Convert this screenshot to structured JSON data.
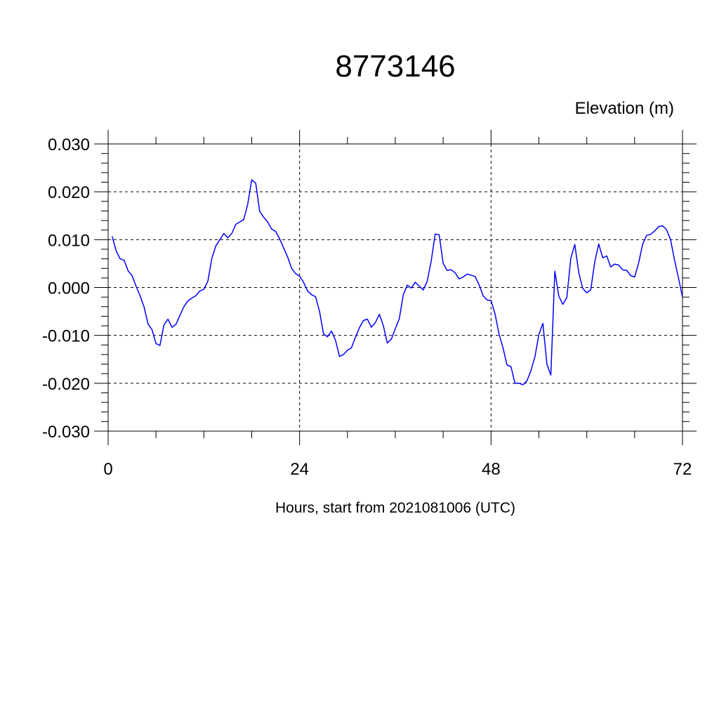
{
  "chart_data": {
    "type": "line",
    "title": "8773146",
    "ylabel": "Elevation (m)",
    "xlabel": "Hours, start from 2021081006 (UTC)",
    "xlim": [
      0,
      72
    ],
    "ylim": [
      -0.03,
      0.03
    ],
    "xticks": [
      0,
      24,
      48,
      72
    ],
    "xtick_labels": [
      "0",
      "24",
      "48",
      "72"
    ],
    "yticks": [
      -0.03,
      -0.02,
      -0.01,
      0.0,
      0.01,
      0.02,
      0.03
    ],
    "ytick_labels": [
      "-0.030",
      "-0.020",
      "-0.010",
      "0.000",
      "0.010",
      "0.020",
      "0.030"
    ],
    "grid": true,
    "line_color": "#0000ff",
    "series": [
      {
        "x": [
          0.5,
          1,
          1.5,
          2,
          2.5,
          3,
          3.5,
          4,
          4.5,
          5,
          5.5,
          6,
          6.5,
          7,
          7.5,
          8,
          8.5,
          9,
          9.5,
          10,
          10.5,
          11,
          11.5,
          12,
          12.5,
          13,
          13.5,
          14,
          14.5,
          15,
          15.5,
          16,
          16.5,
          17,
          17.5,
          18,
          18.5,
          19,
          19.5,
          20,
          20.5,
          21,
          21.5,
          22,
          22.5,
          23,
          23.5,
          24,
          24.5,
          25,
          25.5,
          26,
          26.5,
          27,
          27.5,
          28,
          28.5,
          29,
          29.5,
          30,
          30.5,
          31,
          31.5,
          32,
          32.5,
          33,
          33.5,
          34,
          34.5,
          35,
          35.5,
          36,
          36.5,
          37,
          37.5,
          38,
          38.5,
          39,
          39.5,
          40,
          40.5,
          41,
          41.5,
          42,
          42.5,
          43,
          43.5,
          44,
          44.5,
          45,
          45.5,
          46,
          46.5,
          47,
          47.5,
          48,
          48.5,
          49,
          49.5,
          50,
          50.5,
          51,
          51.5,
          52,
          52.5,
          53,
          53.5,
          54,
          54.5,
          55,
          55.5,
          56,
          56.5,
          57,
          57.5,
          58,
          58.5,
          59,
          59.5,
          60,
          60.5,
          61,
          61.5,
          62,
          62.5,
          63,
          63.5,
          64,
          64.5,
          65,
          65.5,
          66,
          66.5,
          67,
          67.5,
          68,
          68.5,
          69,
          69.5,
          70,
          70.5,
          71,
          71.5,
          72
        ],
        "y": [
          0.0107,
          0.0077,
          0.006,
          0.0057,
          0.0035,
          0.0025,
          0.0003,
          -0.0017,
          -0.004,
          -0.0076,
          -0.0088,
          -0.0117,
          -0.0121,
          -0.0078,
          -0.0066,
          -0.0083,
          -0.0077,
          -0.0058,
          -0.004,
          -0.0028,
          -0.0022,
          -0.0017,
          -0.0007,
          -0.0004,
          0.0013,
          0.0061,
          0.0087,
          0.01,
          0.0113,
          0.0104,
          0.0113,
          0.0132,
          0.0137,
          0.0142,
          0.0174,
          0.0225,
          0.0218,
          0.0159,
          0.0147,
          0.0137,
          0.0122,
          0.0117,
          0.0102,
          0.0083,
          0.0064,
          0.004,
          0.0029,
          0.0024,
          0.0011,
          -0.0007,
          -0.0015,
          -0.0019,
          -0.005,
          -0.0097,
          -0.0103,
          -0.0091,
          -0.011,
          -0.0144,
          -0.014,
          -0.0131,
          -0.0126,
          -0.0104,
          -0.0084,
          -0.0069,
          -0.0066,
          -0.0083,
          -0.0073,
          -0.0056,
          -0.008,
          -0.0116,
          -0.0108,
          -0.0086,
          -0.0065,
          -0.0015,
          0.0005,
          -0.0001,
          0.0011,
          0.0003,
          -0.0005,
          0.0013,
          0.0055,
          0.0112,
          0.011,
          0.005,
          0.0036,
          0.0037,
          0.0031,
          0.0018,
          0.0022,
          0.0028,
          0.0026,
          0.0023,
          0.0006,
          -0.0017,
          -0.0026,
          -0.0027,
          -0.0055,
          -0.0097,
          -0.0126,
          -0.0162,
          -0.0165,
          -0.02,
          -0.02,
          -0.0203,
          -0.0195,
          -0.0174,
          -0.0145,
          -0.0098,
          -0.0075,
          -0.016,
          -0.0183,
          0.0034,
          -0.0018,
          -0.0035,
          -0.0021,
          0.0061,
          0.009,
          0.0031,
          -0.0002,
          -0.0011,
          -0.0005,
          0.0053,
          0.0091,
          0.0062,
          0.0066,
          0.0043,
          0.0049,
          0.0047,
          0.0037,
          0.0036,
          0.0025,
          0.0022,
          0.0051,
          0.009,
          0.0109,
          0.0111,
          0.0118,
          0.0127,
          0.0129,
          0.0121,
          0.01,
          0.0058,
          0.002,
          -0.002
        ]
      }
    ]
  }
}
